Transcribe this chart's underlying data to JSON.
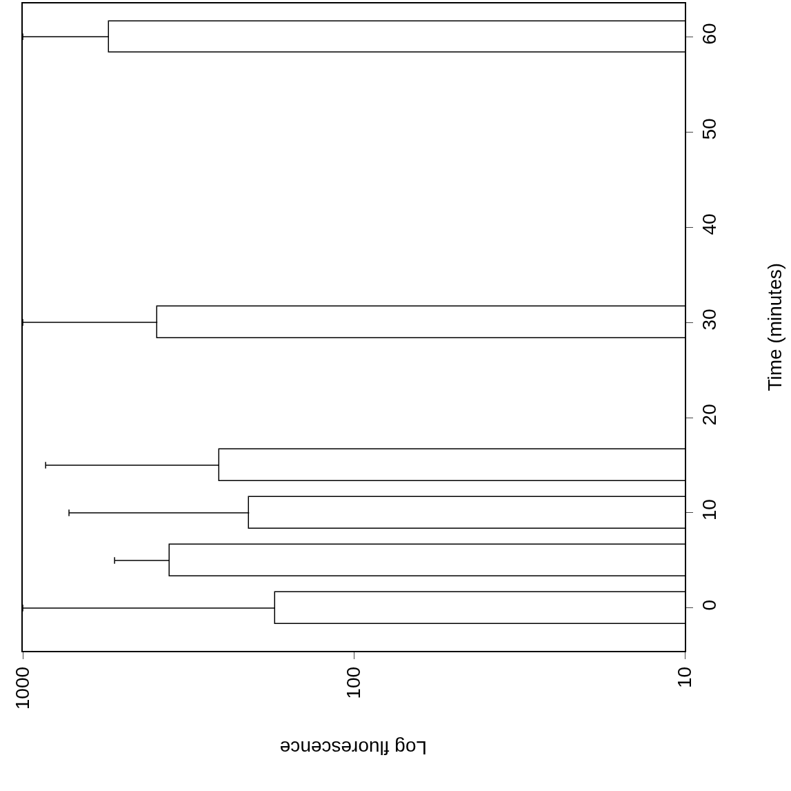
{
  "chart_data": {
    "type": "bar",
    "orientation": "horizontal",
    "log": "x",
    "x": [
      0,
      5,
      10,
      15,
      30,
      60
    ],
    "values": [
      173,
      360,
      207,
      255,
      392,
      549
    ],
    "errors": [
      [
        173,
        1000
      ],
      [
        360,
        528
      ],
      [
        207,
        725
      ],
      [
        255,
        853
      ],
      [
        392,
        1000
      ],
      [
        549,
        1000
      ]
    ],
    "color": "#ffffff",
    "xlabel": "Log fluorescence",
    "ylabel": "Time (minutes)",
    "xlim": [
      1000,
      10
    ],
    "xticks": [
      1000,
      100,
      10
    ],
    "ylim": [
      -4.5,
      63.5
    ],
    "yticks": [
      0,
      10,
      20,
      30,
      40,
      50,
      60
    ]
  }
}
